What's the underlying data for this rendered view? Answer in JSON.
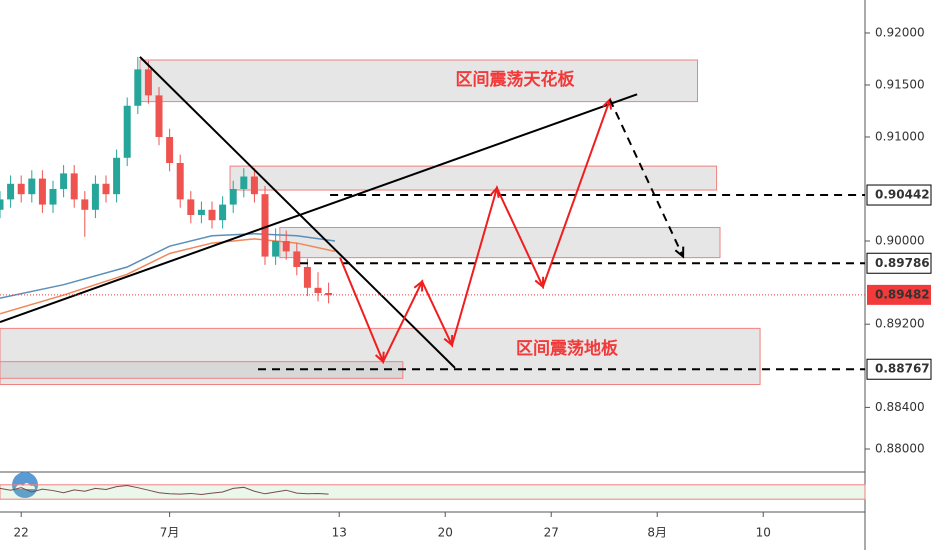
{
  "chart_data": {
    "type": "candlestick",
    "x": [
      -1,
      -0.5,
      0,
      0.5,
      1,
      1.5,
      2,
      2.5,
      3,
      3.5,
      4,
      4.5,
      5,
      5.5,
      6,
      6.5,
      7,
      7.5,
      8,
      8.5,
      9,
      9.5,
      10,
      10.5,
      11,
      11.5,
      12,
      12.5,
      13,
      13.5,
      14,
      14.5
    ],
    "open": [
      0.903,
      0.904,
      0.9055,
      0.9045,
      0.906,
      0.9035,
      0.905,
      0.9065,
      0.904,
      0.903,
      0.9055,
      0.9045,
      0.908,
      0.913,
      0.9165,
      0.914,
      0.91,
      0.9075,
      0.904,
      0.9025,
      0.903,
      0.902,
      0.9035,
      0.905,
      0.9062,
      0.9045,
      0.8985,
      0.9,
      0.899,
      0.8975,
      0.8955,
      0.895
    ],
    "high": [
      0.9048,
      0.9063,
      0.9063,
      0.9068,
      0.9068,
      0.9058,
      0.9073,
      0.9073,
      0.9048,
      0.9063,
      0.9063,
      0.9088,
      0.9138,
      0.9177,
      0.9173,
      0.9148,
      0.9108,
      0.9083,
      0.9048,
      0.9038,
      0.9038,
      0.9043,
      0.9058,
      0.907,
      0.907,
      0.9053,
      0.9012,
      0.901,
      0.8998,
      0.8983,
      0.897,
      0.896
    ],
    "low": [
      0.9022,
      0.9032,
      0.9037,
      0.9037,
      0.9027,
      0.9027,
      0.9042,
      0.9032,
      0.9004,
      0.9022,
      0.9037,
      0.9037,
      0.9072,
      0.9122,
      0.9132,
      0.9092,
      0.9067,
      0.9032,
      0.9017,
      0.9017,
      0.9012,
      0.9012,
      0.9027,
      0.9042,
      0.9037,
      0.8977,
      0.8977,
      0.8982,
      0.8967,
      0.8947,
      0.8942,
      0.894
    ],
    "close": [
      0.904,
      0.9055,
      0.9045,
      0.906,
      0.9035,
      0.905,
      0.9065,
      0.904,
      0.903,
      0.9055,
      0.9045,
      0.908,
      0.913,
      0.9165,
      0.914,
      0.91,
      0.9075,
      0.904,
      0.9025,
      0.903,
      0.902,
      0.9035,
      0.905,
      0.9062,
      0.9045,
      0.8985,
      0.9,
      0.899,
      0.8975,
      0.8955,
      0.895,
      0.8948
    ],
    "up_color": "#26a69a",
    "down_color": "#ef5350",
    "xlim": [
      -1,
      39.8
    ],
    "ylim": [
      0.87779,
      0.92317
    ],
    "xticks": [
      {
        "value": 0,
        "label": "22"
      },
      {
        "value": 7,
        "label": "7月"
      },
      {
        "value": 15,
        "label": "13"
      },
      {
        "value": 20,
        "label": "20"
      },
      {
        "value": 25,
        "label": "27"
      },
      {
        "value": 30,
        "label": "8月"
      },
      {
        "value": 35,
        "label": "10"
      }
    ],
    "yticks": [
      {
        "value": 0.92,
        "label": "0.92000"
      },
      {
        "value": 0.915,
        "label": "0.91500"
      },
      {
        "value": 0.91,
        "label": "0.91000"
      },
      {
        "value": 0.9,
        "label": "0.90000"
      },
      {
        "value": 0.892,
        "label": "0.89200"
      },
      {
        "value": 0.884,
        "label": "0.88400"
      },
      {
        "value": 0.88,
        "label": "0.88000"
      }
    ],
    "moving_averages": [
      {
        "color": "#5b8fb9",
        "x": [
          -1,
          2,
          5,
          7,
          9,
          11,
          13,
          14.8
        ],
        "values": [
          0.8945,
          0.8958,
          0.8975,
          0.8995,
          0.9005,
          0.9007,
          0.9005,
          0.9
        ]
      },
      {
        "color": "#f0875a",
        "x": [
          -1,
          2,
          5,
          7,
          9,
          11,
          13,
          14.8
        ],
        "values": [
          0.893,
          0.8948,
          0.8968,
          0.8988,
          0.8998,
          0.9002,
          0.8998,
          0.899
        ]
      }
    ],
    "zones": [
      {
        "x": [
          5.6,
          31.9
        ],
        "y": [
          0.9134,
          0.9174
        ]
      },
      {
        "x": [
          9.85,
          32.8
        ],
        "y": [
          0.9049,
          0.9072
        ]
      },
      {
        "x": [
          12.2,
          32.96
        ],
        "y": [
          0.8984,
          0.9013
        ]
      },
      {
        "x": [
          -1,
          34.85
        ],
        "y": [
          0.8862,
          0.8916
        ]
      },
      {
        "x": [
          -1,
          18.0
        ],
        "y": [
          0.8868,
          0.8884
        ]
      }
    ],
    "trendlines": [
      {
        "x": [
          5.6,
          20.46
        ],
        "y": [
          0.9177,
          0.8878
        ]
      },
      {
        "x": [
          -1,
          29.05
        ],
        "y": [
          0.8922,
          0.9141
        ]
      }
    ],
    "levels": [
      {
        "x": 14.57,
        "value": 0.90442,
        "label": "0.90442",
        "color": "#000000",
        "style": "dashed"
      },
      {
        "x": 13.15,
        "value": 0.89786,
        "label": "0.89786",
        "color": "#000000",
        "style": "dashed"
      },
      {
        "x": -1,
        "value": 0.89482,
        "label": "0.89482",
        "color": "#f23a3a",
        "style": "dotted"
      },
      {
        "x": 11.17,
        "value": 0.88767,
        "label": "0.88767",
        "color": "#000000",
        "style": "dashed"
      }
    ],
    "projection": {
      "color": "#f01e1e",
      "x": [
        15.04,
        17.07,
        18.91,
        20.32,
        22.44,
        24.61,
        27.77
      ],
      "y": [
        0.8984,
        0.8884,
        0.8961,
        0.89,
        0.9051,
        0.8956,
        0.9136
      ]
    },
    "projection_tail": {
      "color": "#000000",
      "x": [
        27.77,
        31.22
      ],
      "y": [
        0.9136,
        0.8985
      ]
    },
    "annotations": [
      "区间震荡天花板",
      "区间震荡地板"
    ],
    "indicator": {
      "ylim": [
        0,
        100
      ],
      "band": [
        30,
        70
      ],
      "x": [
        -1,
        -0.5,
        0,
        0.5,
        1,
        1.5,
        2,
        2.5,
        3,
        3.5,
        4,
        4.5,
        5,
        5.5,
        6,
        6.5,
        7,
        7.5,
        8,
        8.5,
        9,
        9.5,
        10,
        10.5,
        11,
        11.5,
        12,
        12.5,
        13,
        13.5,
        14,
        14.5
      ],
      "values": [
        60,
        55,
        62,
        50,
        58,
        54,
        48,
        56,
        52,
        60,
        57,
        65,
        68,
        62,
        55,
        48,
        45,
        44,
        46,
        43,
        47,
        50,
        60,
        63,
        52,
        45,
        50,
        55,
        47,
        45,
        46,
        44
      ]
    }
  }
}
